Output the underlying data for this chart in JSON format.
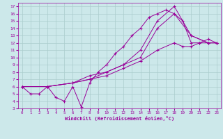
{
  "xlabel": "Windchill (Refroidissement éolien,°C)",
  "bg_color": "#cce8ea",
  "line_color": "#990099",
  "grid_color": "#aacccc",
  "xlim": [
    -0.5,
    23.5
  ],
  "ylim": [
    3,
    17.5
  ],
  "xticks": [
    0,
    1,
    2,
    3,
    4,
    5,
    6,
    7,
    8,
    9,
    10,
    11,
    12,
    13,
    14,
    15,
    16,
    17,
    18,
    19,
    20,
    21,
    22,
    23
  ],
  "yticks": [
    3,
    4,
    5,
    6,
    7,
    8,
    9,
    10,
    11,
    12,
    13,
    14,
    15,
    16,
    17
  ],
  "lines": [
    {
      "x": [
        0,
        1,
        2,
        3,
        4,
        5,
        6,
        7,
        8,
        9,
        10,
        11,
        12,
        13,
        14,
        15,
        16,
        17,
        18,
        19,
        20,
        21,
        22,
        23
      ],
      "y": [
        6,
        5,
        5,
        6,
        4.5,
        4,
        6,
        3.2,
        6.5,
        8,
        9,
        10.5,
        11.5,
        13,
        14,
        15.5,
        16,
        16.5,
        16,
        15,
        12,
        12,
        12.5,
        12
      ]
    },
    {
      "x": [
        0,
        3,
        6,
        8,
        10,
        12,
        14,
        16,
        18,
        20,
        22,
        23
      ],
      "y": [
        6,
        6,
        6.5,
        7.5,
        8,
        9,
        11,
        15,
        17,
        13,
        12,
        12
      ]
    },
    {
      "x": [
        0,
        3,
        6,
        8,
        10,
        12,
        14,
        16,
        18,
        20,
        22,
        23
      ],
      "y": [
        6,
        6,
        6.5,
        7,
        8,
        9,
        10,
        14,
        16,
        13,
        12,
        12
      ]
    },
    {
      "x": [
        0,
        3,
        6,
        8,
        10,
        12,
        14,
        16,
        18,
        19,
        20,
        21,
        22,
        23
      ],
      "y": [
        6,
        6,
        6.5,
        7,
        7.5,
        8.5,
        9.5,
        11,
        12,
        11.5,
        11.5,
        12,
        12,
        12
      ]
    }
  ]
}
